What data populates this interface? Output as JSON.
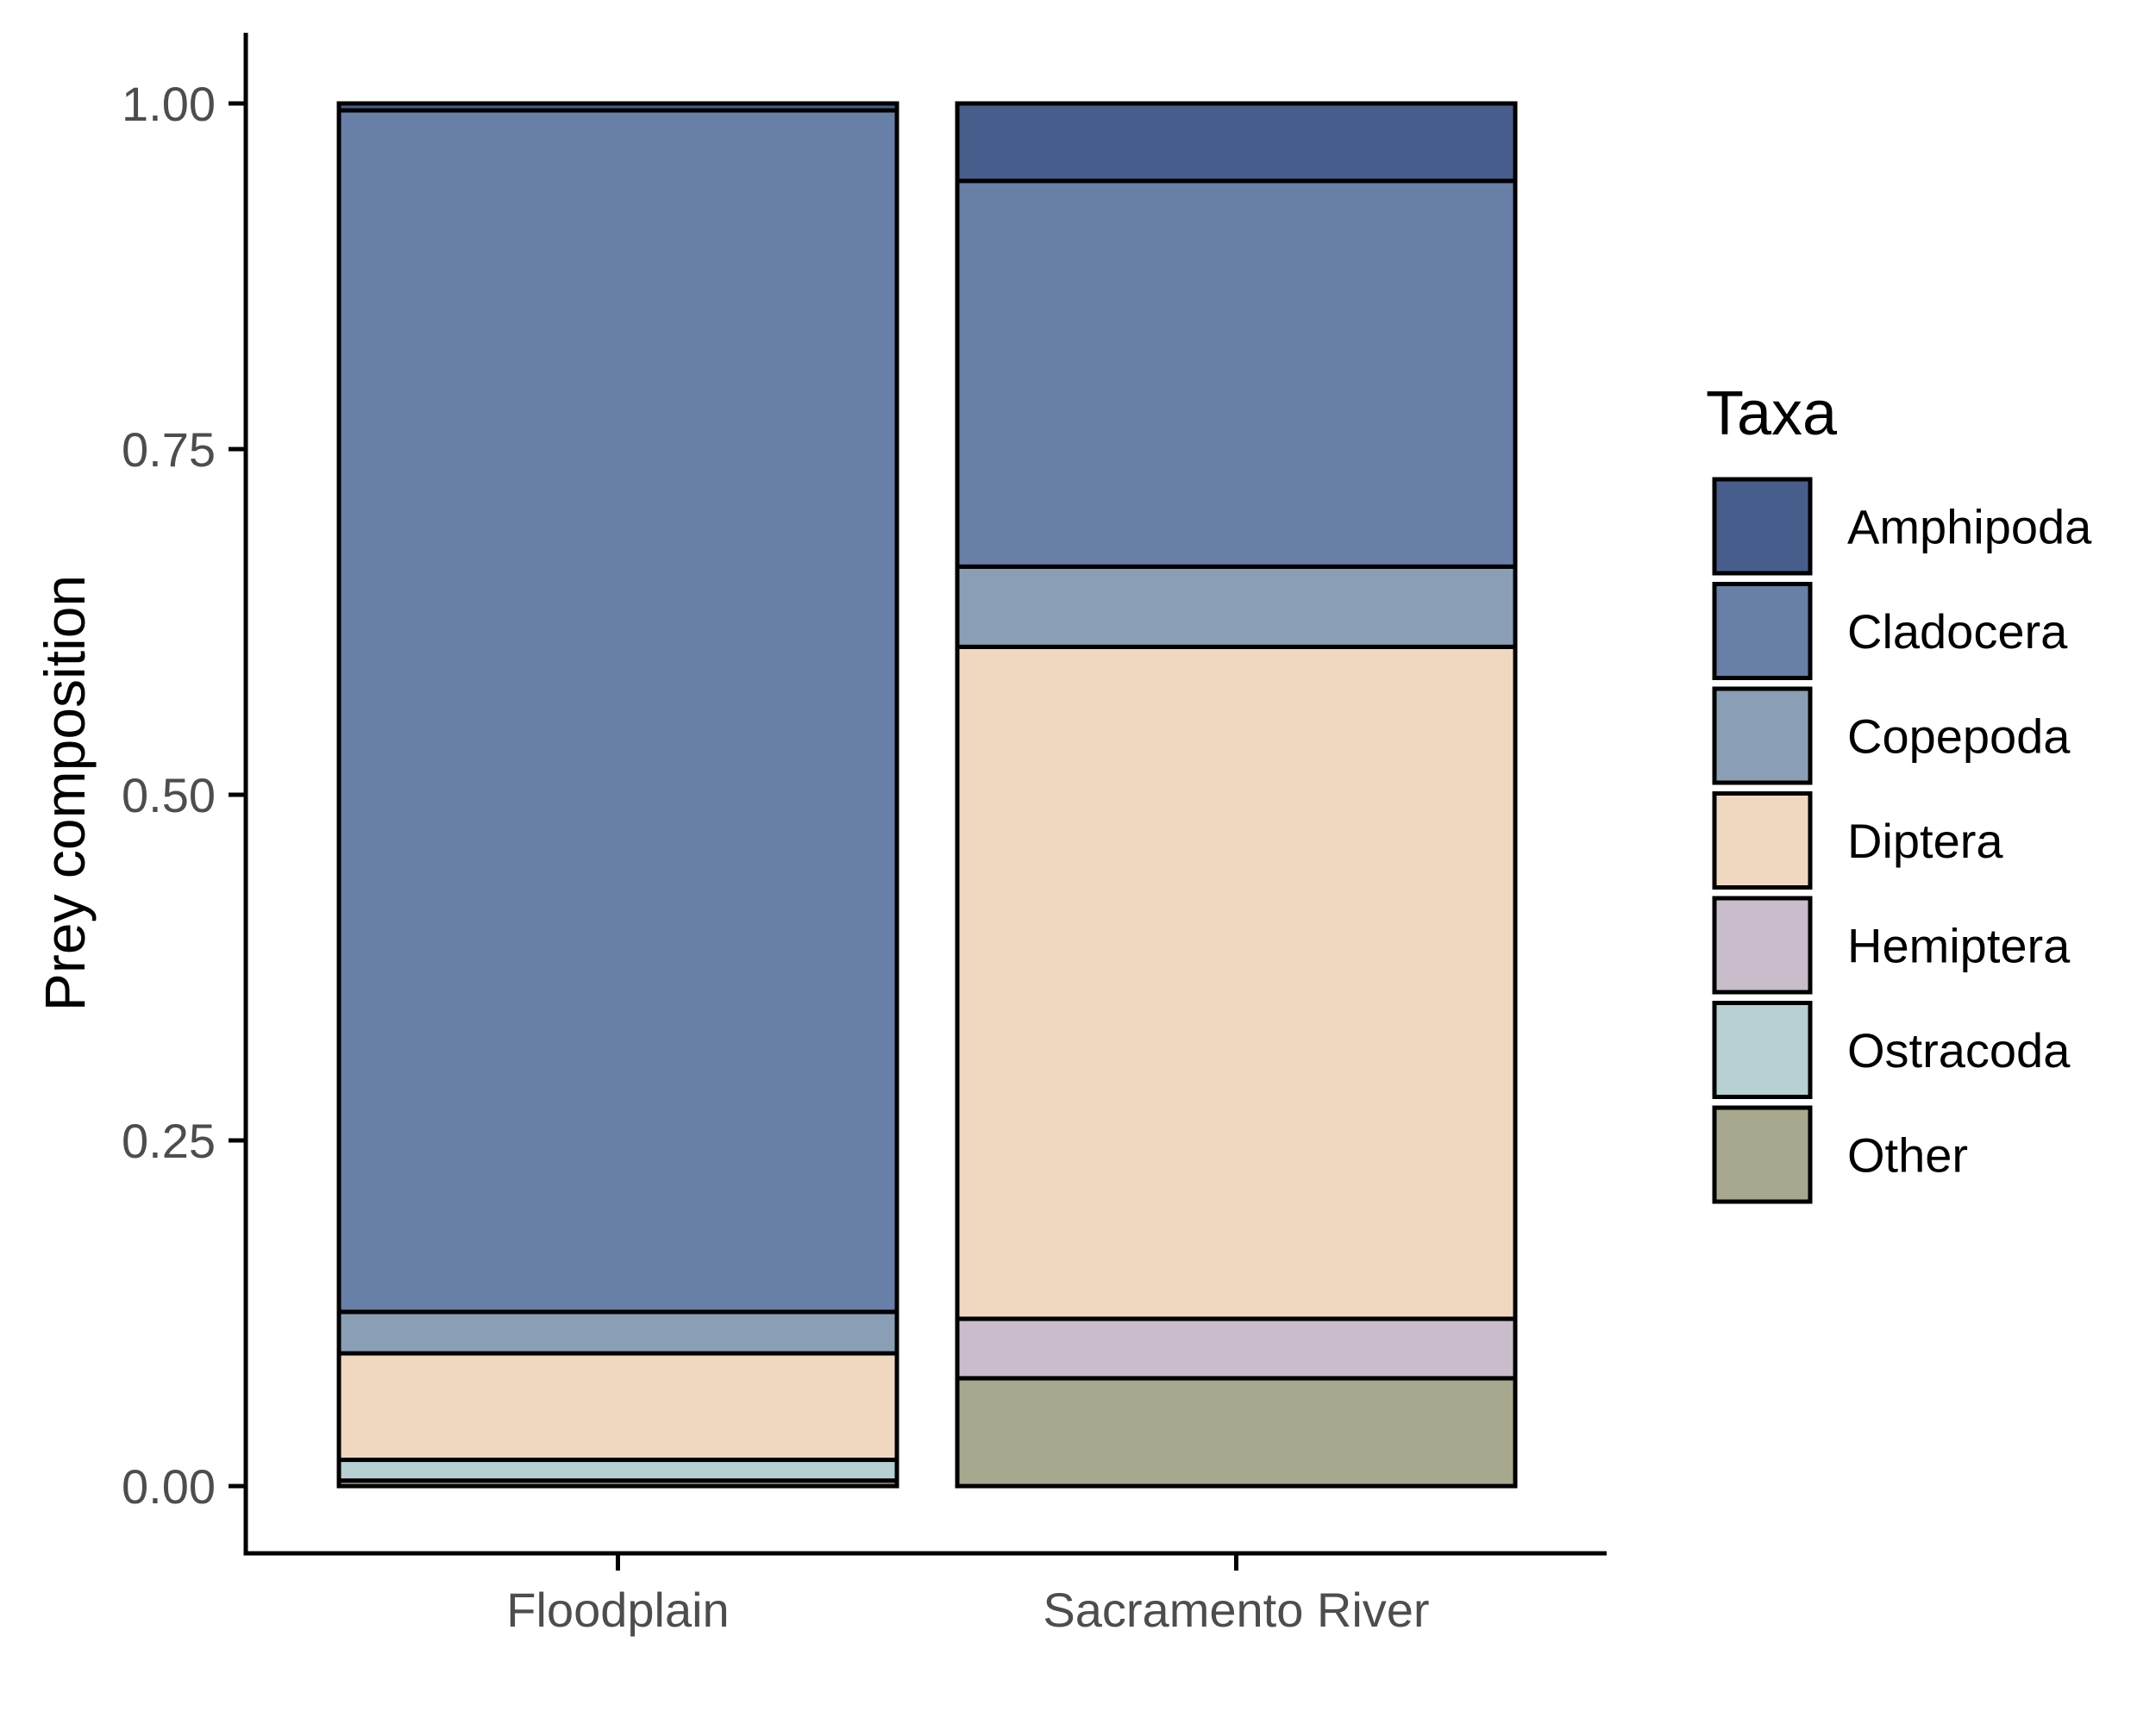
{
  "chart_data": {
    "type": "bar",
    "stacked": true,
    "title": "",
    "xlabel": "",
    "ylabel": "Prey composition",
    "ylim": [
      0,
      1.05
    ],
    "yticks": [
      0.0,
      0.25,
      0.5,
      0.75,
      1.0
    ],
    "ytick_labels": [
      "0.00",
      "0.25",
      "0.50",
      "0.75",
      "1.00"
    ],
    "categories": [
      "Floodplain",
      "Sacramento River"
    ],
    "legend": {
      "title": "Taxa",
      "position": "right"
    },
    "series": [
      {
        "name": "Amphipoda",
        "color": "#475e8c",
        "values": [
          0.005,
          0.056
        ]
      },
      {
        "name": "Cladocera",
        "color": "#687fa7",
        "values": [
          0.869,
          0.279
        ]
      },
      {
        "name": "Copepoda",
        "color": "#8a9fb5",
        "values": [
          0.03,
          0.058
        ]
      },
      {
        "name": "Diptera",
        "color": "#f0d8c0",
        "values": [
          0.077,
          0.486
        ]
      },
      {
        "name": "Hemiptera",
        "color": "#c9bccb",
        "values": [
          0.0,
          0.043
        ]
      },
      {
        "name": "Ostracoda",
        "color": "#b7d0d1",
        "values": [
          0.015,
          0.0
        ]
      },
      {
        "name": "Other",
        "color": "#a8a88e",
        "values": [
          0.004,
          0.078
        ]
      }
    ],
    "grid": false
  }
}
